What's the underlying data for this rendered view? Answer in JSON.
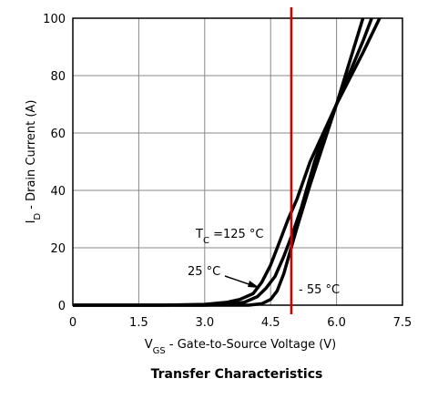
{
  "chart_data": {
    "type": "line",
    "title": "Transfer Characteristics",
    "xlabel": [
      "V",
      "GS",
      " - Gate-to-Source Voltage (V)"
    ],
    "ylabel": [
      "I",
      "D",
      " - Drain Current (A)"
    ],
    "xlim": [
      0,
      7.5
    ],
    "xticks": [
      0,
      1.5,
      {
        "value": 3,
        "label": "3.0"
      },
      4.5,
      {
        "value": 6,
        "label": "6.0"
      },
      7.5
    ],
    "ylim": [
      0,
      100
    ],
    "yticks": [
      0,
      20,
      40,
      60,
      80,
      100
    ],
    "grid": true,
    "vline": {
      "x": 4.97,
      "color": "#d40000"
    },
    "series": [
      {
        "name": [
          "T",
          "C",
          " =125 °C"
        ],
        "color": "#000000",
        "x": [
          0,
          2.0,
          3.0,
          3.5,
          3.8,
          4.1,
          4.3,
          4.5,
          4.7,
          4.9,
          5.1,
          5.4,
          5.7,
          6.0,
          6.3,
          6.6,
          6.98
        ],
        "values": [
          0,
          0,
          0.3,
          1,
          2,
          4,
          8,
          14,
          22,
          30,
          37,
          50,
          60,
          70,
          79,
          88,
          100
        ]
      },
      {
        "name": "25 °C",
        "color": "#000000",
        "x": [
          0,
          3.0,
          3.5,
          3.9,
          4.2,
          4.4,
          4.6,
          4.8,
          5.0,
          5.2,
          5.5,
          5.8,
          6.0,
          6.3,
          6.6,
          6.8
        ],
        "values": [
          0,
          0,
          0.3,
          1,
          3,
          6,
          10,
          17,
          25,
          34,
          50,
          63,
          70,
          81,
          92,
          100
        ]
      },
      {
        "name": "- 55 °C",
        "color": "#000000",
        "x": [
          0,
          4.0,
          4.3,
          4.5,
          4.65,
          4.8,
          4.95,
          5.1,
          5.4,
          5.7,
          6.0,
          6.3,
          6.6
        ],
        "values": [
          0,
          0,
          0.5,
          2,
          5,
          11,
          19,
          27,
          42,
          56,
          70,
          85,
          100
        ]
      }
    ]
  }
}
